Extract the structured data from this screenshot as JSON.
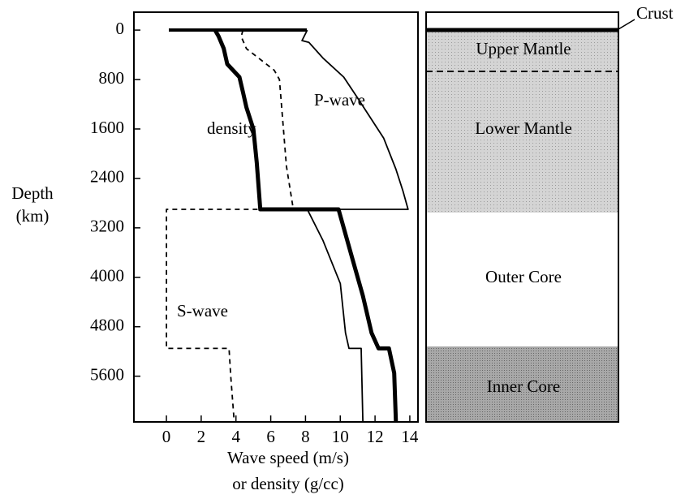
{
  "chart_data": {
    "type": "line",
    "xlabel": [
      "Wave speed (m/s)",
      "or density (g/cc)"
    ],
    "ylabel": [
      "Depth",
      "(km)"
    ],
    "xlim": [
      -1.87,
      14.47
    ],
    "xticks": [
      0,
      2,
      4,
      6,
      8,
      10,
      12,
      14
    ],
    "ylim": [
      6340,
      -290
    ],
    "yticks": [
      0,
      800,
      1600,
      2400,
      3200,
      4000,
      4800,
      5600
    ],
    "series": [
      {
        "name": "P-wave",
        "color": "#000000",
        "line_style": "solid",
        "line_width": 1.8,
        "x": [
          8.1,
          7.8,
          8.2,
          9.0,
          10.2,
          11.0,
          12.5,
          13.2,
          13.6,
          13.9,
          8.1,
          9.0,
          10.0,
          10.3,
          10.5,
          11.2,
          11.3
        ],
        "values": [
          0,
          170,
          200,
          450,
          760,
          1100,
          1750,
          2250,
          2600,
          2900,
          2900,
          3400,
          4100,
          4900,
          5150,
          5150,
          6340
        ]
      },
      {
        "name": "density",
        "color": "#000000",
        "line_style": "solid",
        "line_width": 5,
        "x": [
          2.8,
          3.0,
          3.3,
          3.5,
          4.2,
          4.4,
          4.6,
          5.0,
          5.2,
          5.4,
          9.9,
          10.2,
          10.7,
          11.3,
          11.8,
          12.2,
          12.8,
          13.1,
          13.2
        ],
        "values": [
          0,
          100,
          300,
          550,
          760,
          1000,
          1250,
          1600,
          2150,
          2900,
          2900,
          3200,
          3700,
          4300,
          4900,
          5150,
          5150,
          5550,
          6340
        ]
      },
      {
        "name": "S-wave",
        "color": "#000000",
        "line_style": "dashed",
        "line_width": 1.8,
        "x": [
          4.4,
          4.3,
          4.6,
          6.2,
          6.5,
          6.7,
          6.9,
          7.3,
          0,
          0,
          3.6,
          3.7,
          3.9
        ],
        "values": [
          0,
          105,
          300,
          650,
          800,
          1500,
          2200,
          2900,
          2900,
          5150,
          5150,
          5600,
          6340
        ]
      }
    ]
  },
  "layers": {
    "crust": "Crust",
    "upper_mantle": "Upper Mantle",
    "lower_mantle": "Lower Mantle",
    "outer_core": "Outer Core",
    "inner_core": "Inner Core"
  }
}
